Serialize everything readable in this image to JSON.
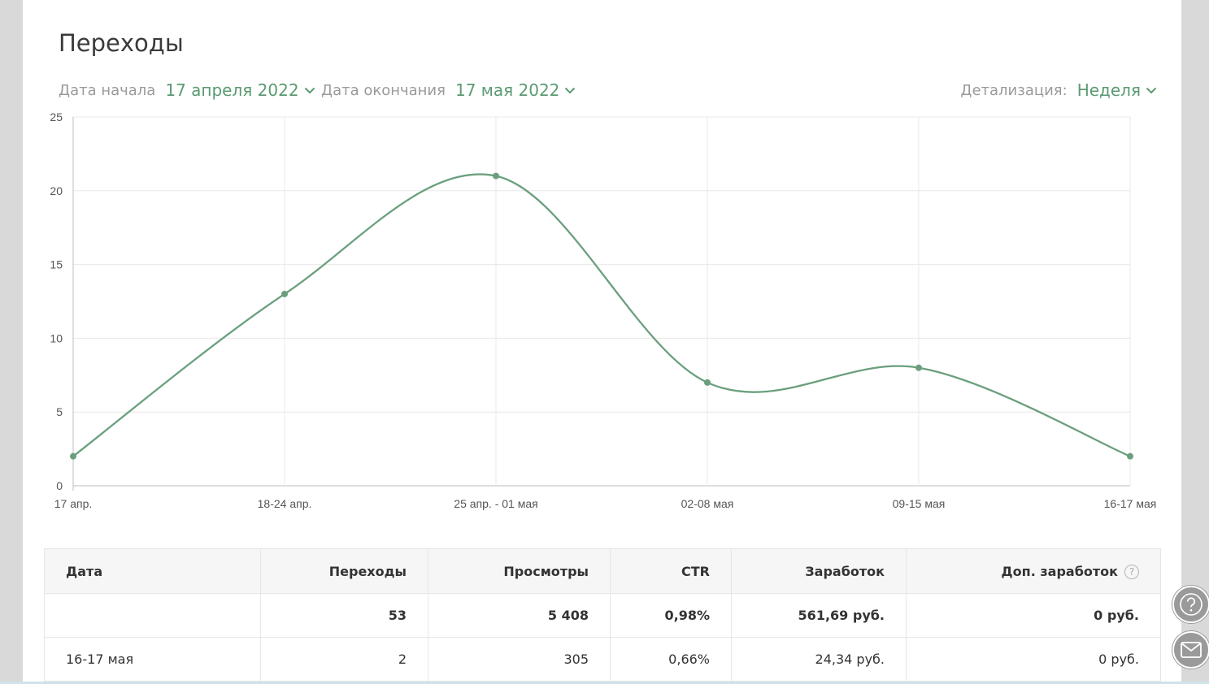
{
  "page": {
    "title": "Переходы"
  },
  "filters": {
    "start_label": "Дата начала",
    "start_value": "17 апреля 2022",
    "end_label": "Дата окончания",
    "end_value": "17 мая 2022",
    "detail_label": "Детализация:",
    "detail_value": "Неделя"
  },
  "colors": {
    "accent": "#5b9a72",
    "line": "#6a9f7e",
    "grid": "#e8e8e8",
    "muted": "#9a9a9a"
  },
  "chart_data": {
    "type": "line",
    "categories": [
      "17 апр.",
      "18-24 апр.",
      "25 апр. - 01 мая",
      "02-08 мая",
      "09-15 мая",
      "16-17 мая"
    ],
    "series": [
      {
        "values": [
          2,
          13,
          21,
          7,
          8,
          2
        ]
      }
    ],
    "yticks": [
      "0",
      "5",
      "10",
      "15",
      "20",
      "25"
    ],
    "ylim": [
      0,
      25
    ],
    "grid": true,
    "smooth": true
  },
  "table": {
    "headers": [
      "Дата",
      "Переходы",
      "Просмотры",
      "CTR",
      "Заработок",
      "Доп. заработок"
    ],
    "help_glyph": "?",
    "total": [
      "",
      "53",
      "5 408",
      "0,98%",
      "561,69 руб.",
      "0 руб."
    ],
    "rows": [
      [
        "16-17 мая",
        "2",
        "305",
        "0,66%",
        "24,34 руб.",
        "0 руб."
      ]
    ]
  },
  "fabs": {
    "help_icon": "question-circle-icon",
    "mail_icon": "envelope-icon"
  }
}
